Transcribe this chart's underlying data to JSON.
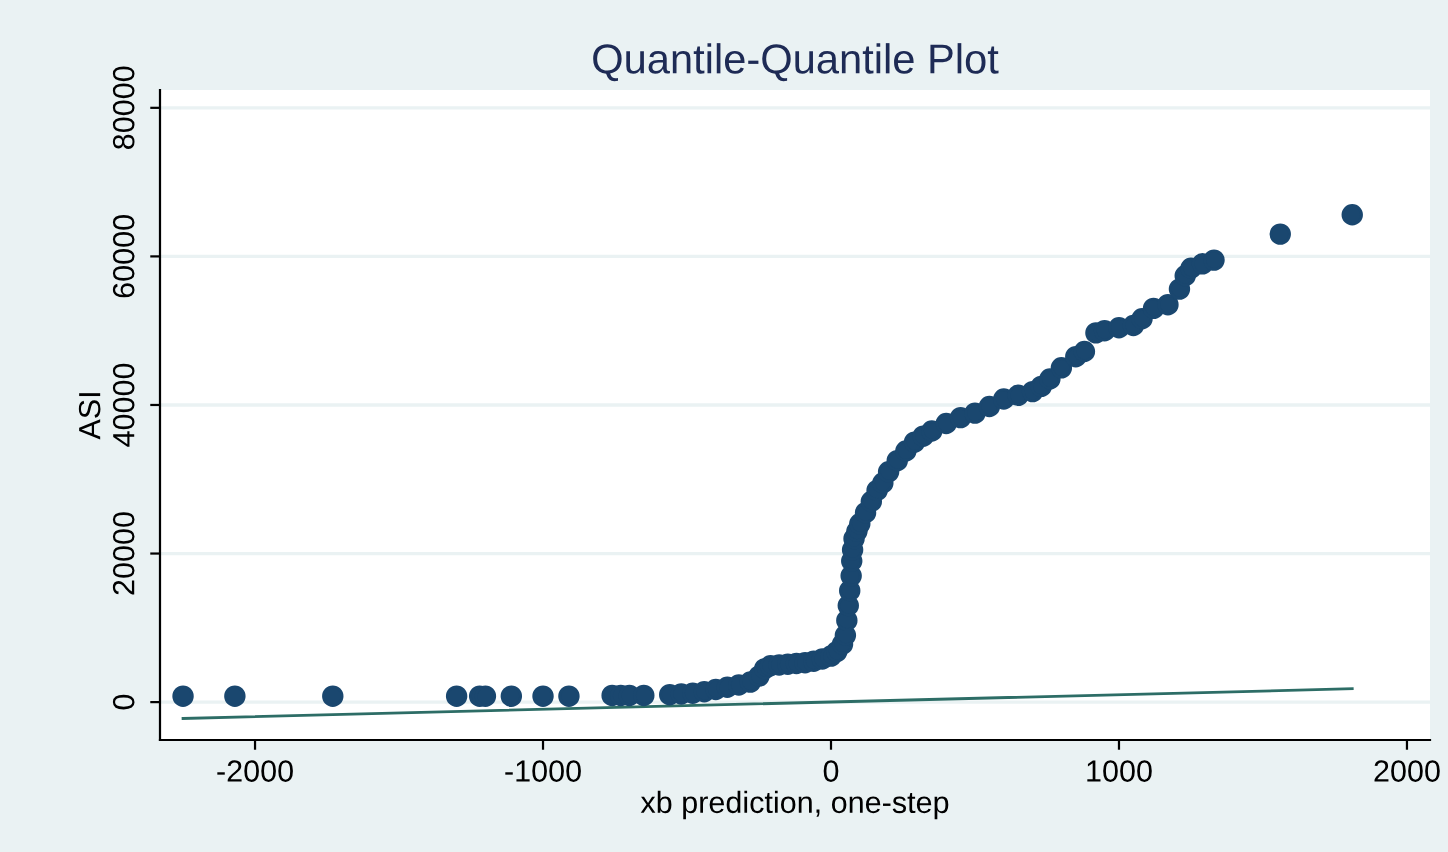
{
  "chart_data": {
    "type": "scatter",
    "title": "Quantile-Quantile Plot",
    "xlabel": "xb prediction, one-step",
    "ylabel": "ASI",
    "xlim": [
      -2330,
      2080
    ],
    "ylim": [
      -5100,
      82400
    ],
    "xticks": [
      -2000,
      -1000,
      0,
      1000,
      2000
    ],
    "yticks": [
      0,
      20000,
      40000,
      60000,
      80000
    ],
    "grid": "y",
    "marker": "circle",
    "series": [
      {
        "color": "#1a476f",
        "x": [
          -2250,
          -2070,
          -1730,
          -1300,
          -1220,
          -1200,
          -1110,
          -1000,
          -910,
          -760,
          -730,
          -700,
          -650,
          -560,
          -520,
          -480,
          -440,
          -400,
          -360,
          -320,
          -280,
          -250,
          -230,
          -210,
          -180,
          -150,
          -120,
          -90,
          -60,
          -30,
          0,
          20,
          40,
          50,
          55,
          60,
          65,
          70,
          72,
          75,
          80,
          90,
          100,
          120,
          140,
          160,
          180,
          200,
          230,
          260,
          290,
          320,
          350,
          400,
          450,
          500,
          550,
          600,
          650,
          700,
          730,
          760,
          800,
          850,
          880,
          920,
          950,
          1000,
          1050,
          1080,
          1120,
          1170,
          1210,
          1230,
          1250,
          1290,
          1330,
          1560,
          1810
        ],
        "values": [
          800,
          800,
          800,
          800,
          800,
          800,
          800,
          800,
          800,
          900,
          900,
          900,
          900,
          1000,
          1100,
          1200,
          1400,
          1700,
          2000,
          2300,
          2700,
          3500,
          4500,
          4900,
          5000,
          5100,
          5200,
          5300,
          5500,
          5800,
          6200,
          6800,
          7800,
          9000,
          11000,
          13000,
          15000,
          17000,
          19000,
          20500,
          22000,
          23000,
          24000,
          25500,
          27000,
          28500,
          29500,
          31000,
          32500,
          33800,
          35000,
          35800,
          36500,
          37500,
          38300,
          38900,
          39800,
          40800,
          41300,
          41800,
          42500,
          43500,
          45000,
          46500,
          47200,
          49700,
          50000,
          50400,
          50700,
          51600,
          53000,
          53500,
          55600,
          57400,
          58400,
          59000,
          59500,
          63000,
          65600
        ]
      },
      {
        "type": "line",
        "marker": "none",
        "color": "#2d6d66",
        "x": [
          -2250,
          1810
        ],
        "values": [
          -2200,
          1800
        ]
      }
    ]
  }
}
